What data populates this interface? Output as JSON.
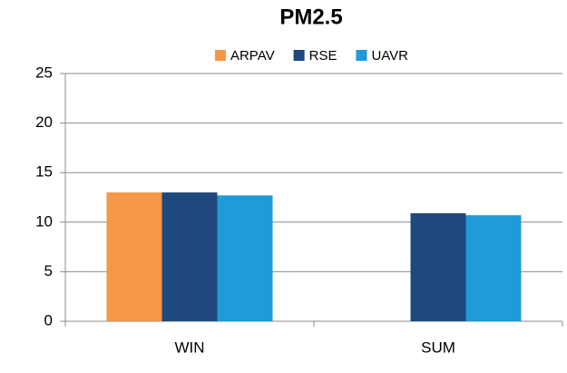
{
  "chart_data": {
    "type": "bar",
    "title": "PM2.5",
    "categories": [
      "WIN",
      "SUM"
    ],
    "series": [
      {
        "name": "ARPAV",
        "color": "#f79646",
        "values": [
          13,
          null
        ]
      },
      {
        "name": "RSE",
        "color": "#1f497d",
        "values": [
          13,
          10.9
        ]
      },
      {
        "name": "UAVR",
        "color": "#1f9bd7",
        "values": [
          12.7,
          10.7
        ]
      }
    ],
    "ylim": [
      0,
      25
    ],
    "yticks": [
      0,
      5,
      10,
      15,
      20,
      25
    ],
    "grid": true,
    "legend": "top"
  }
}
